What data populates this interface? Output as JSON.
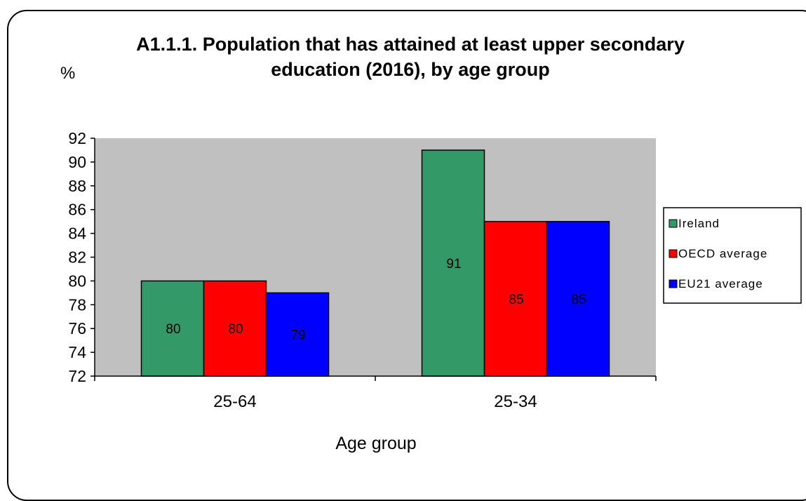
{
  "chart_data": {
    "type": "bar",
    "title_lines": [
      "A1.1.1. Population that has attained at least upper secondary",
      "education (2016), by age group"
    ],
    "ylabel": "%",
    "xlabel": "Age group",
    "categories": [
      "25-64",
      "25-34"
    ],
    "series": [
      {
        "name": "Ireland",
        "color": "#339966",
        "values": [
          80,
          91
        ]
      },
      {
        "name": "OECD average",
        "color": "#ff0000",
        "values": [
          80,
          85
        ]
      },
      {
        "name": "EU21 average",
        "color": "#0000ff",
        "values": [
          79,
          85
        ]
      }
    ],
    "ylim": [
      72,
      92
    ],
    "yticks": [
      72,
      74,
      76,
      78,
      80,
      82,
      84,
      86,
      88,
      90,
      92
    ],
    "plot_background": "#c0c0c0",
    "grid": false,
    "legend_position": "right"
  }
}
